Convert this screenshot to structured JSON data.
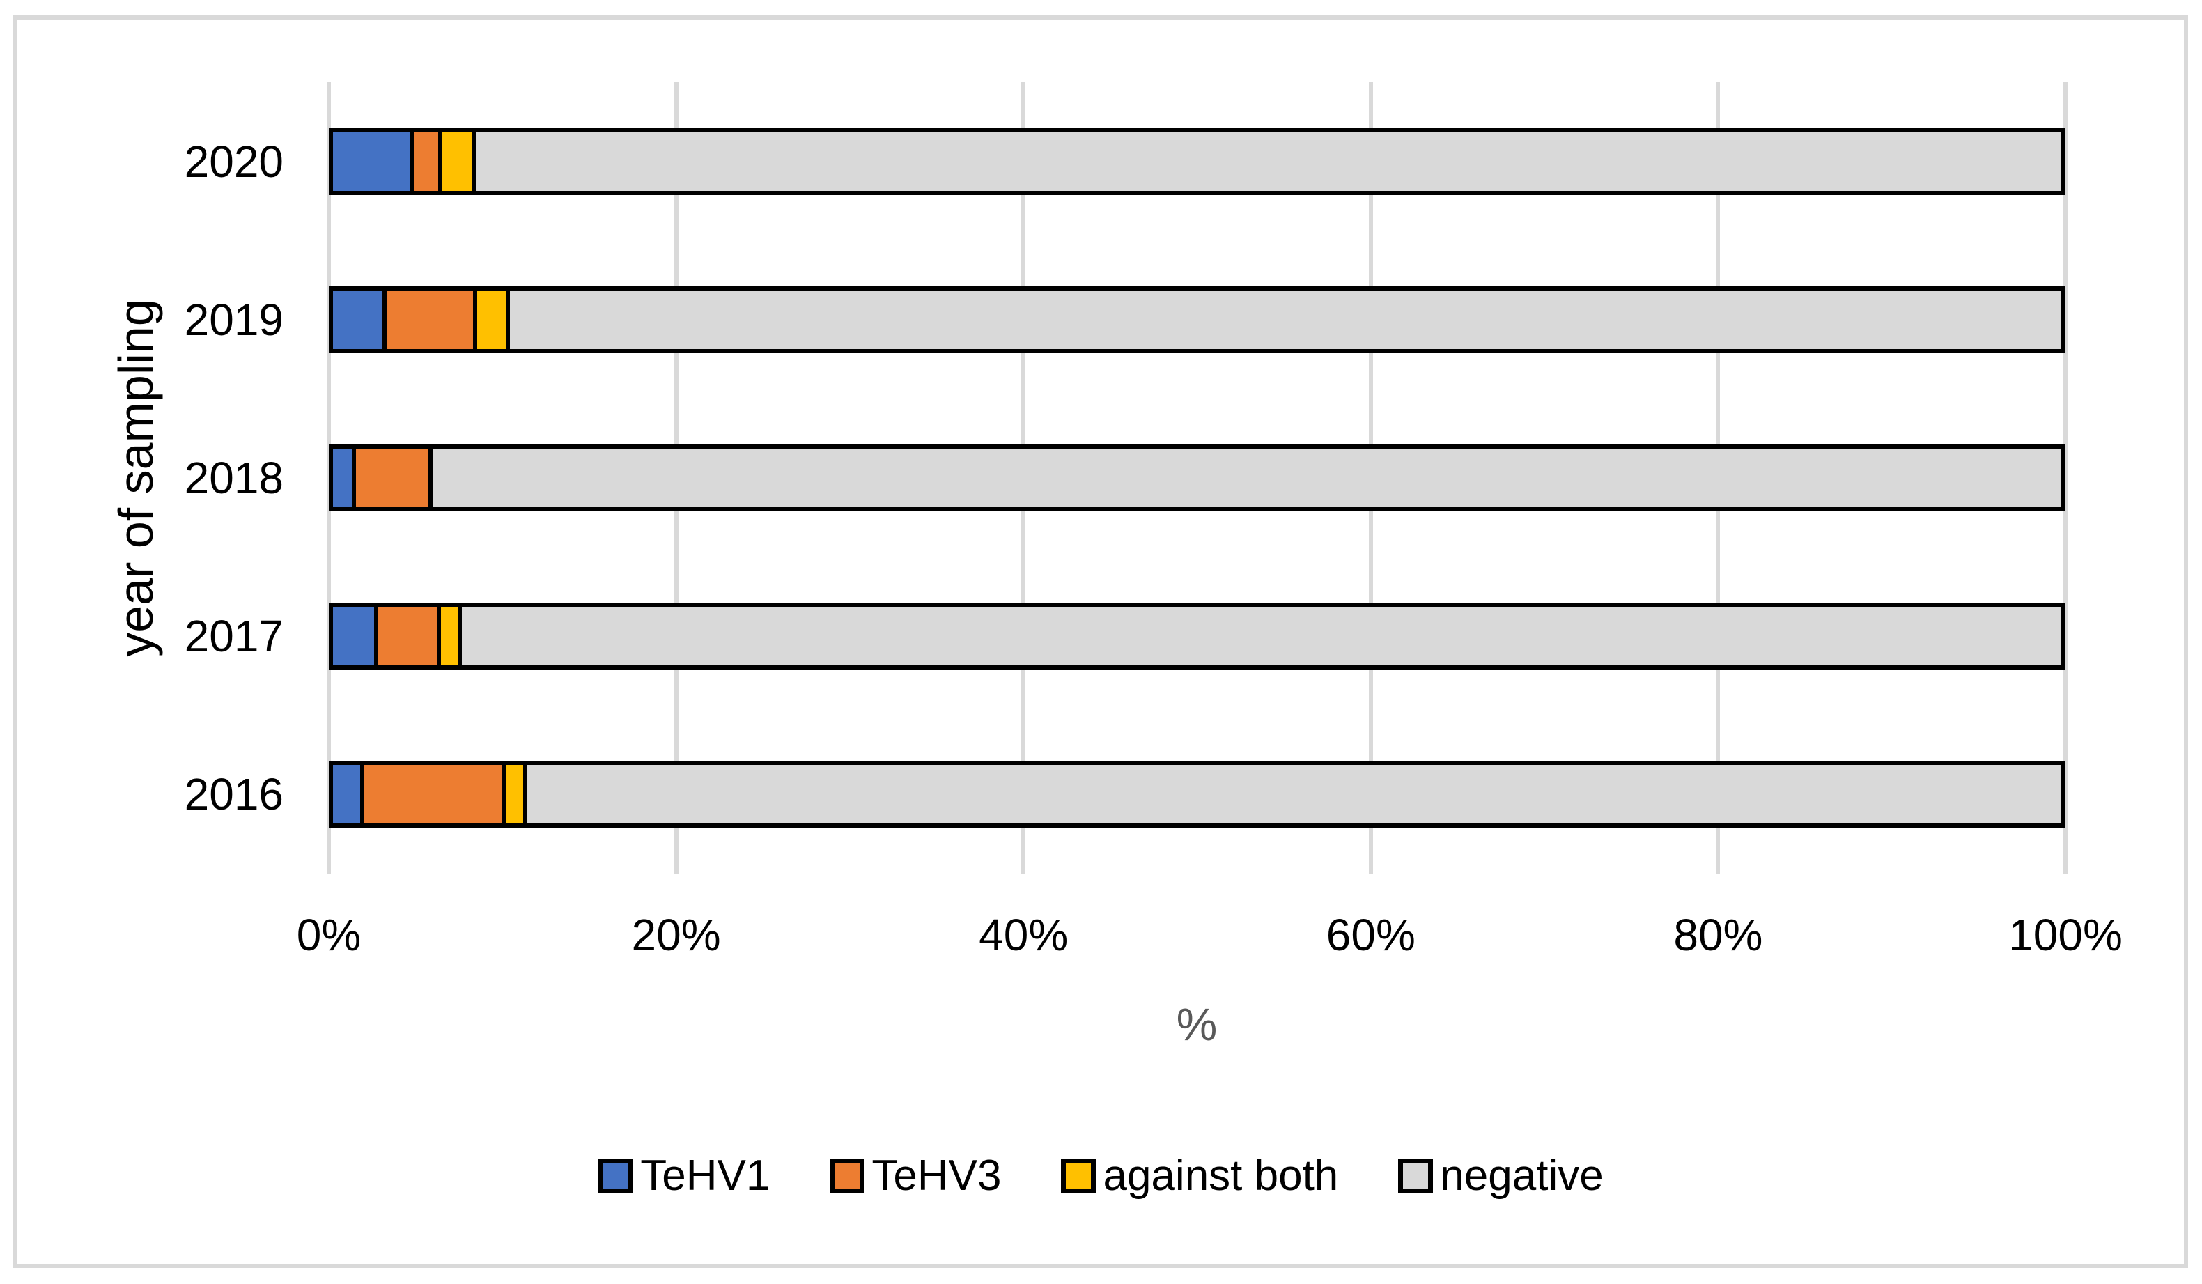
{
  "figure": {
    "background_color": "#FFFFFF",
    "border_color": "#D9D9D9"
  },
  "chart_data": {
    "type": "bar",
    "orientation": "horizontal",
    "stacked": true,
    "title": "",
    "xlabel": "%",
    "ylabel": "year of sampling",
    "categories": [
      "2020",
      "2019",
      "2018",
      "2017",
      "2016"
    ],
    "series": [
      {
        "name": "TeHV1",
        "color": "#4472C4",
        "values": [
          4.5,
          2.9,
          1.1,
          2.4,
          1.6
        ]
      },
      {
        "name": "TeHV3",
        "color": "#ED7D31",
        "values": [
          1.4,
          5.0,
          4.2,
          3.4,
          8.0
        ]
      },
      {
        "name": "against both",
        "color": "#FFC000",
        "values": [
          1.7,
          1.7,
          0.0,
          1.0,
          1.0
        ]
      },
      {
        "name": "negative",
        "color": "#D9D9D9",
        "values": [
          92.4,
          90.4,
          94.7,
          93.2,
          89.4
        ]
      }
    ],
    "x_ticks": [
      "0%",
      "20%",
      "40%",
      "60%",
      "80%",
      "100%"
    ],
    "xlim": [
      0,
      100
    ],
    "gridlines": "vertical",
    "gridline_color": "#D9D9D9",
    "bar_border_color": "#000000",
    "legend_position": "bottom"
  }
}
